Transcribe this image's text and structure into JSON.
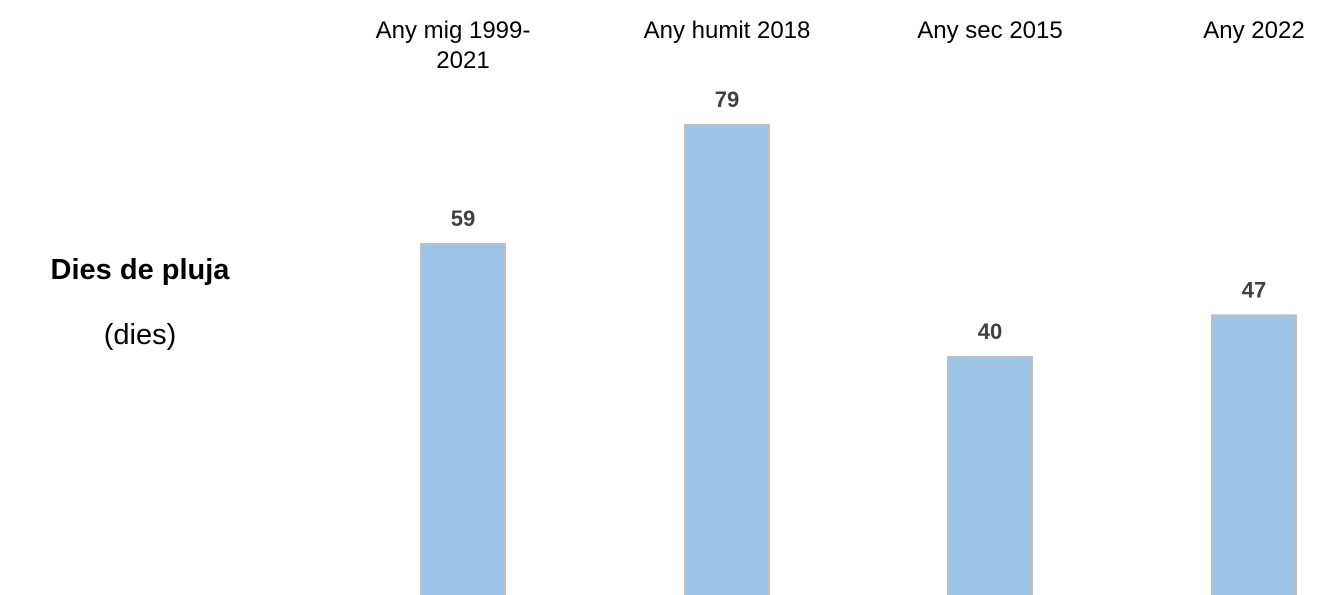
{
  "chart_data": {
    "type": "bar",
    "ylabel": "Dies de pluja",
    "yunit": "(dies)",
    "categories": [
      [
        "Any mig 1999-",
        "2021"
      ],
      [
        "Any humit 2018"
      ],
      [
        "Any sec 2015"
      ],
      [
        "Any 2022"
      ]
    ],
    "values": [
      59,
      79,
      40,
      47
    ],
    "value_labels": [
      "59",
      "79",
      "40",
      "47"
    ],
    "ylim": [
      0,
      100
    ],
    "grid": false,
    "legend": "none",
    "colors": {
      "bar_fill": "#9dc3e6",
      "bar_stroke": "#bfbfbf",
      "value_text": "#404040",
      "label_text": "#000000"
    }
  }
}
